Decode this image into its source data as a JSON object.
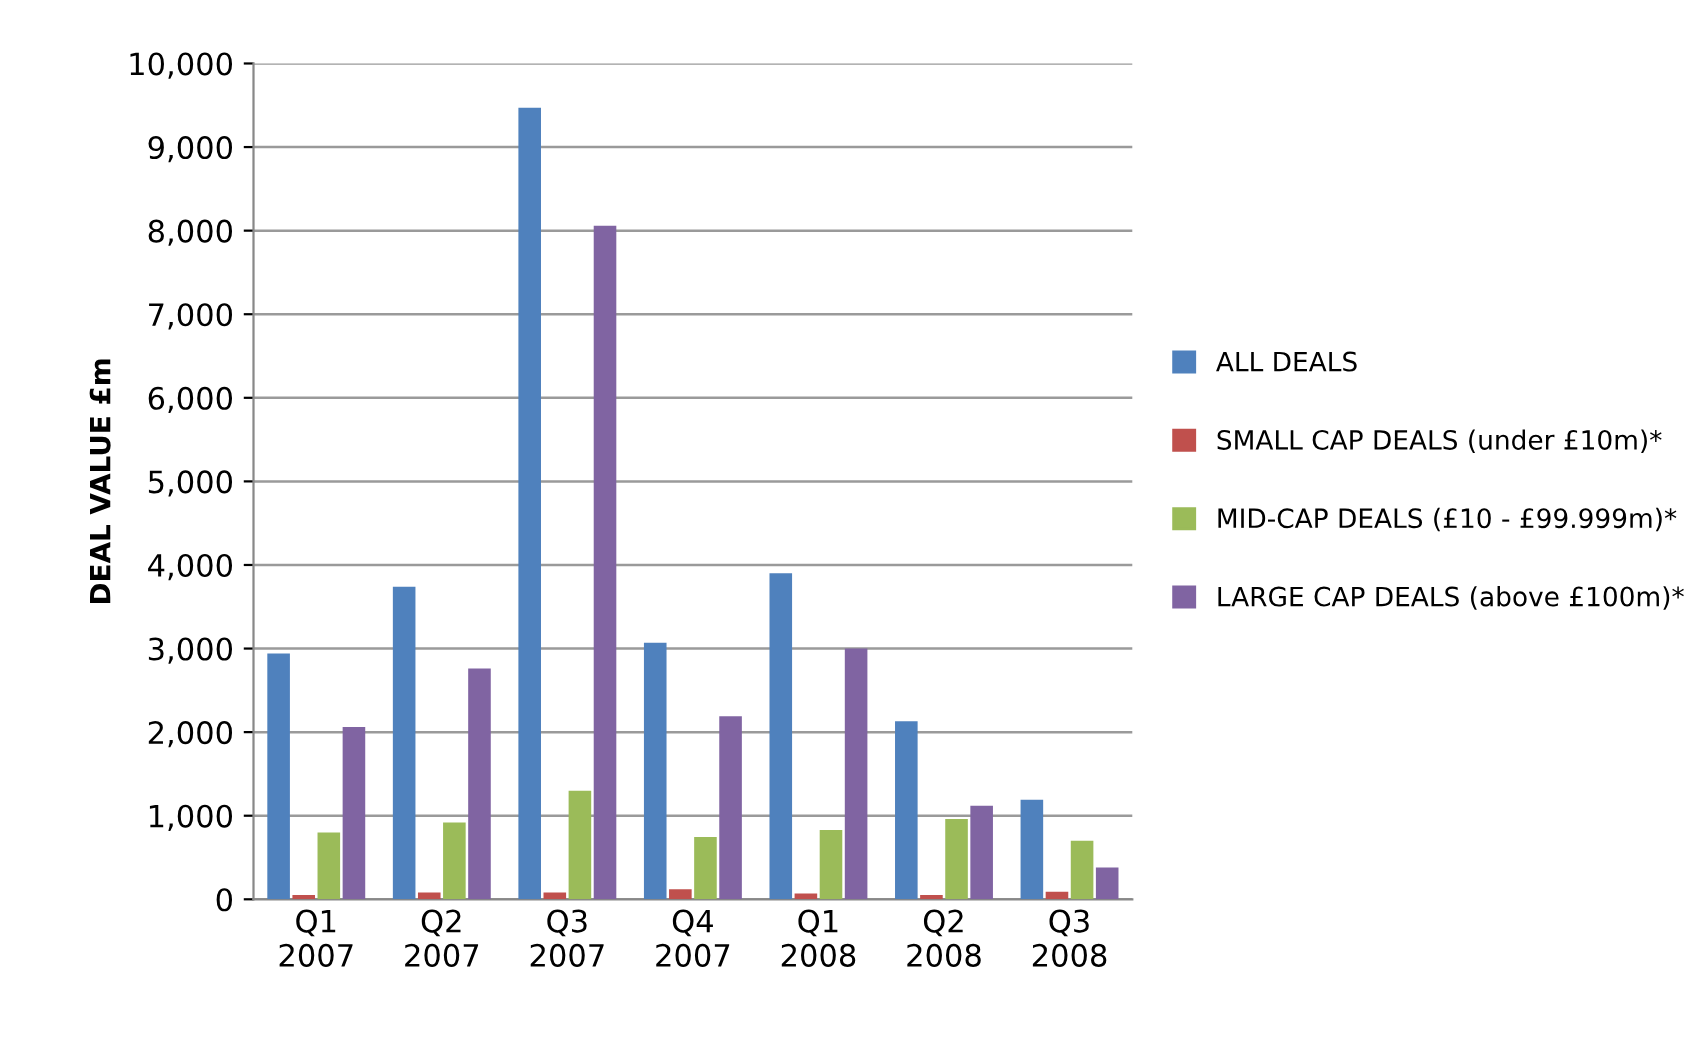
{
  "chart_data": {
    "type": "bar",
    "ylabel": "DEAL VALUE £m",
    "categories": [
      "Q1\n2007",
      "Q2\n2007",
      "Q3\n2007",
      "Q4\n2007",
      "Q1\n2008",
      "Q2\n2008",
      "Q3\n2008"
    ],
    "series": [
      {
        "name": "ALL DEALS",
        "color": "#4f81bd",
        "values": [
          2940,
          3740,
          9470,
          3070,
          3900,
          2130,
          1190
        ]
      },
      {
        "name": "SMALL CAP DEALS (under £10m)*",
        "color": "#c0504d",
        "values": [
          50,
          80,
          80,
          120,
          70,
          50,
          90
        ]
      },
      {
        "name": "MID-CAP DEALS (£10 - £99.999m)*",
        "color": "#9bbb59",
        "values": [
          800,
          920,
          1300,
          745,
          830,
          960,
          700
        ]
      },
      {
        "name": "LARGE CAP DEALS (above £100m)*",
        "color": "#8064a2",
        "values": [
          2060,
          2760,
          8060,
          2190,
          3000,
          1120,
          380
        ]
      }
    ],
    "ylim": [
      0,
      10000
    ],
    "yticks": [
      {
        "value": 0,
        "label": "0"
      },
      {
        "value": 1000,
        "label": "1,000"
      },
      {
        "value": 2000,
        "label": "2,000"
      },
      {
        "value": 3000,
        "label": "3,000"
      },
      {
        "value": 4000,
        "label": "4,000"
      },
      {
        "value": 5000,
        "label": "5,000"
      },
      {
        "value": 6000,
        "label": "6,000"
      },
      {
        "value": 7000,
        "label": "7,000"
      },
      {
        "value": 8000,
        "label": "8,000"
      },
      {
        "value": 9000,
        "label": "9,000"
      },
      {
        "value": 10000,
        "label": "10,000"
      }
    ],
    "grid": "y",
    "legend": "right"
  }
}
